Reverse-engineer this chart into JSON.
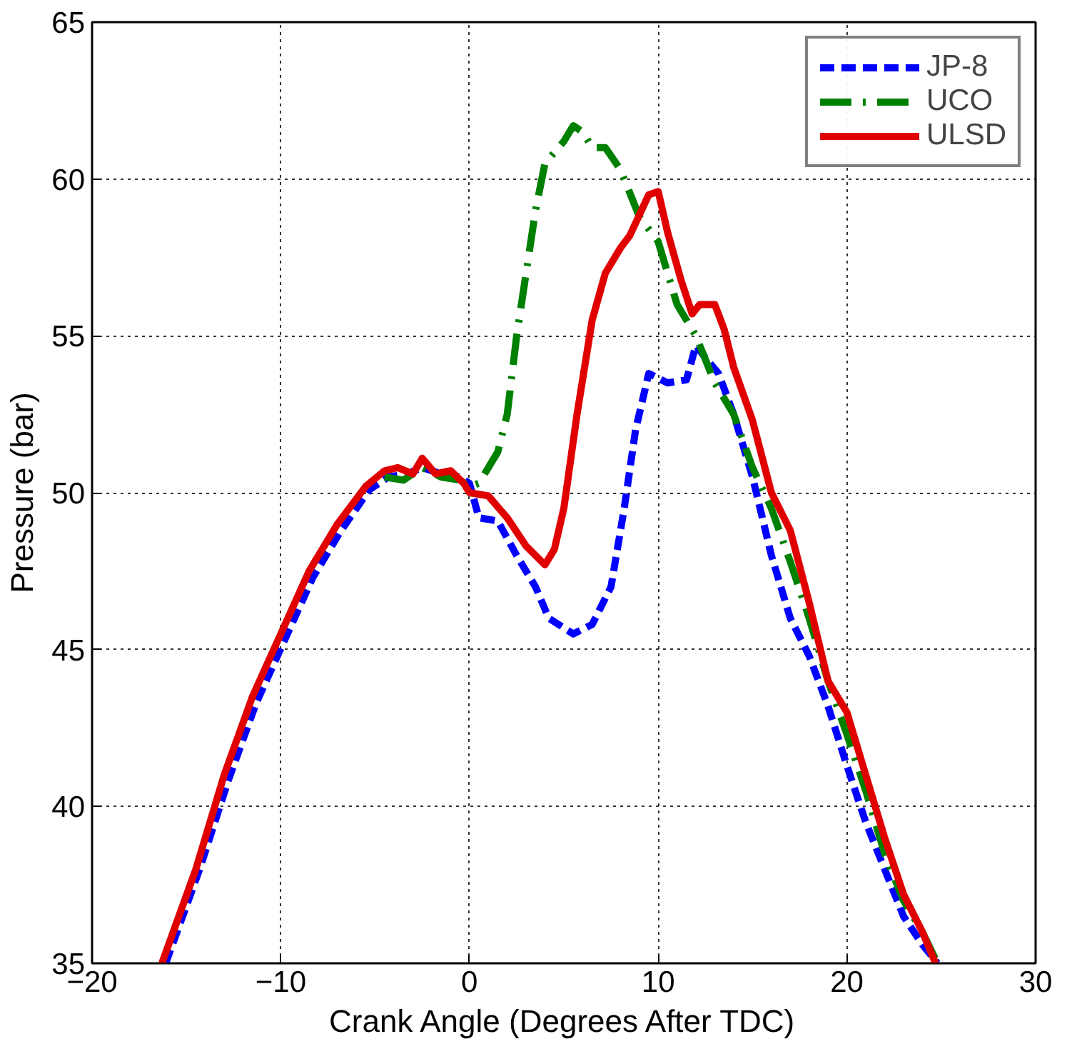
{
  "chart_data": {
    "type": "line",
    "xlabel": "Crank Angle (Degrees After TDC)",
    "ylabel": "Pressure (bar)",
    "xlim": [
      -20,
      30
    ],
    "xticks": [
      -20,
      -10,
      0,
      10,
      20,
      30
    ],
    "ylim": [
      35,
      65
    ],
    "yticks": [
      35,
      40,
      45,
      50,
      55,
      60,
      65
    ],
    "grid": true,
    "legend": "top right",
    "marker": "none",
    "series": [
      {
        "name": "JP-8",
        "color": "#0000ff",
        "line_style": "dashed",
        "x": [
          -16.1,
          -14.3,
          -12.8,
          -11.3,
          -9.8,
          -8.3,
          -6.8,
          -5.3,
          -4.3,
          -3.3,
          -2.5,
          -1.5,
          -0.5,
          0,
          0.5,
          1.5,
          2.5,
          3.5,
          4.2,
          5.5,
          6.5,
          7.5,
          8.2,
          8.8,
          9.5,
          10.5,
          11.5,
          12,
          12.5,
          13.2,
          14,
          15,
          16,
          17,
          18,
          19,
          20,
          21,
          22,
          23,
          24,
          24.8
        ],
        "values": [
          35,
          38,
          40.8,
          43.3,
          45.3,
          47.3,
          48.8,
          50.1,
          50.5,
          50.6,
          50.8,
          50.6,
          50.5,
          50.3,
          49.2,
          49.1,
          48,
          47,
          46,
          45.5,
          45.8,
          47,
          49.5,
          52,
          53.8,
          53.5,
          53.6,
          54.7,
          54.3,
          53.8,
          52.5,
          50.5,
          48,
          46,
          44.8,
          43.2,
          41.3,
          39.5,
          38,
          36.5,
          35.6,
          35
        ]
      },
      {
        "name": "UCO",
        "color": "#008000",
        "line_style": "dashdot",
        "x": [
          -4.5,
          -3.5,
          -2.5,
          -1.5,
          -0.5,
          0,
          0.5,
          1,
          1.5,
          2,
          2.5,
          3,
          3.5,
          4,
          5,
          5.5,
          6,
          6.5,
          7.2,
          8,
          9,
          10,
          11,
          12,
          13,
          14,
          15,
          16,
          17,
          18,
          19,
          20,
          21,
          22,
          23,
          24,
          24.8
        ],
        "values": [
          50.5,
          50.4,
          50.8,
          50.5,
          50.4,
          50.2,
          50.3,
          50.8,
          51.3,
          52.5,
          55,
          57,
          59,
          60.5,
          61.2,
          61.7,
          61.5,
          61,
          61,
          60.3,
          58.8,
          58,
          56,
          55,
          53.5,
          52.5,
          50.8,
          49.5,
          47.8,
          46,
          44,
          42.3,
          40.5,
          38.5,
          37,
          36,
          35
        ]
      },
      {
        "name": "ULSD",
        "color": "#e00000",
        "line_style": "solid",
        "x": [
          -16.3,
          -14.5,
          -13,
          -11.5,
          -10,
          -8.5,
          -7,
          -5.5,
          -4.5,
          -3.8,
          -3,
          -2.5,
          -1.8,
          -1,
          -0.3,
          0,
          1,
          2,
          3,
          4,
          4.5,
          5,
          5.7,
          6.5,
          7.2,
          8,
          8.5,
          9.5,
          10,
          10.5,
          11.2,
          11.8,
          12.2,
          13,
          13.5,
          14,
          15,
          16,
          17,
          18,
          19,
          20,
          21,
          22,
          23,
          24,
          24.7
        ],
        "values": [
          35,
          38,
          41,
          43.5,
          45.5,
          47.5,
          49,
          50.2,
          50.7,
          50.8,
          50.6,
          51.1,
          50.6,
          50.7,
          50.3,
          50,
          49.9,
          49.2,
          48.3,
          47.7,
          48.2,
          49.5,
          52.5,
          55.5,
          57,
          57.8,
          58.2,
          59.5,
          59.6,
          58.3,
          56.8,
          55.7,
          56,
          56,
          55.2,
          54,
          52.3,
          50,
          48.8,
          46.5,
          44,
          43,
          41,
          39,
          37.2,
          36,
          35
        ]
      }
    ]
  }
}
